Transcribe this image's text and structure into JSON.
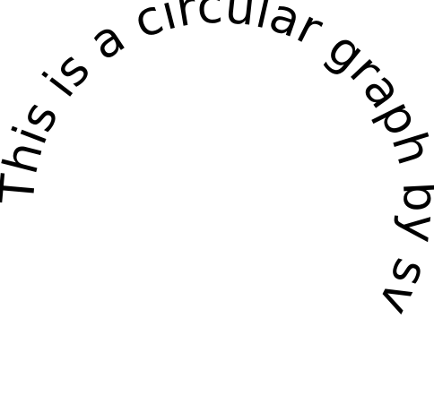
{
  "text": "This is a circular graph by svg",
  "trail": "........"
}
